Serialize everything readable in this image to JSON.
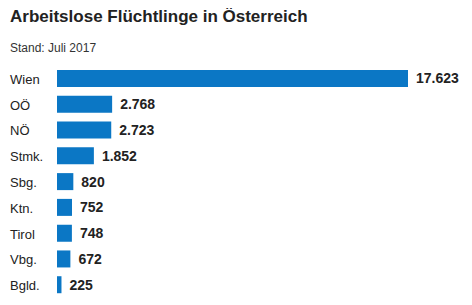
{
  "chart_data": {
    "type": "bar",
    "title": "Arbeitslose Flüchtlinge in Österreich",
    "subtitle": "Stand: Juli 2017",
    "orientation": "horizontal",
    "categories": [
      "Wien",
      "OÖ",
      "NÖ",
      "Stmk.",
      "Sbg.",
      "Ktn.",
      "Tirol",
      "Vbg.",
      "Bgld."
    ],
    "values": [
      17623,
      2768,
      2723,
      1852,
      820,
      752,
      748,
      672,
      225
    ],
    "value_labels": [
      "17.623",
      "2.768",
      "2.723",
      "1.852",
      "820",
      "752",
      "748",
      "672",
      "225"
    ],
    "color": "#0b77c5",
    "data_labels": true,
    "grid": false,
    "tick_labels": "y"
  }
}
